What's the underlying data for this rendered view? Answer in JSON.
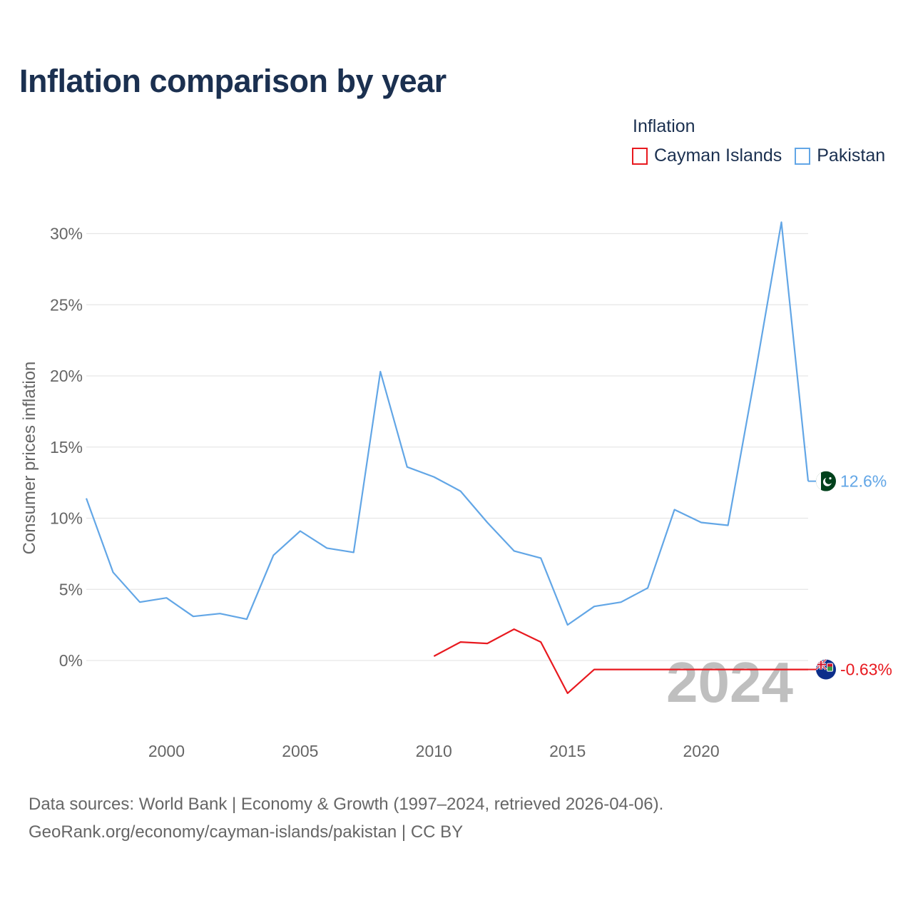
{
  "header": {
    "title": "Inflation comparison by year"
  },
  "legend": {
    "title": "Inflation",
    "items": [
      {
        "label": "Cayman Islands",
        "color": "#e8191f"
      },
      {
        "label": "Pakistan",
        "color": "#62a6e6"
      }
    ]
  },
  "chart_data": {
    "type": "line",
    "title": "Inflation comparison by year",
    "xlabel": "",
    "ylabel": "Consumer prices inflation",
    "xlim": [
      1997,
      2024
    ],
    "ylim": [
      -4.5,
      32
    ],
    "x_ticks": [
      2000,
      2005,
      2010,
      2015,
      2020
    ],
    "y_ticks": [
      {
        "value": 0,
        "label": "0%"
      },
      {
        "value": 5,
        "label": "5%"
      },
      {
        "value": 10,
        "label": "10%"
      },
      {
        "value": 15,
        "label": "15%"
      },
      {
        "value": 20,
        "label": "20%"
      },
      {
        "value": 25,
        "label": "25%"
      },
      {
        "value": 30,
        "label": "30%"
      }
    ],
    "grid": true,
    "watermark_year": "2024",
    "series": [
      {
        "name": "Pakistan",
        "color": "#62a6e6",
        "flag": "pakistan-flag-icon",
        "end_label": "12.6%",
        "points": [
          [
            1997,
            11.4
          ],
          [
            1998,
            6.2
          ],
          [
            1999,
            4.1
          ],
          [
            2000,
            4.4
          ],
          [
            2001,
            3.1
          ],
          [
            2002,
            3.3
          ],
          [
            2003,
            2.9
          ],
          [
            2004,
            7.4
          ],
          [
            2005,
            9.1
          ],
          [
            2006,
            7.9
          ],
          [
            2007,
            7.6
          ],
          [
            2008,
            20.3
          ],
          [
            2009,
            13.6
          ],
          [
            2010,
            12.9
          ],
          [
            2011,
            11.9
          ],
          [
            2012,
            9.7
          ],
          [
            2013,
            7.7
          ],
          [
            2014,
            7.2
          ],
          [
            2015,
            2.5
          ],
          [
            2016,
            3.8
          ],
          [
            2017,
            4.1
          ],
          [
            2018,
            5.1
          ],
          [
            2019,
            10.6
          ],
          [
            2020,
            9.7
          ],
          [
            2021,
            9.5
          ],
          [
            2022,
            19.9
          ],
          [
            2023,
            30.8
          ],
          [
            2024,
            12.6
          ]
        ]
      },
      {
        "name": "Cayman Islands",
        "color": "#e8191f",
        "flag": "cayman-islands-flag-icon",
        "end_label": "-0.63%",
        "points": [
          [
            2010,
            0.3
          ],
          [
            2011,
            1.3
          ],
          [
            2012,
            1.2
          ],
          [
            2013,
            2.2
          ],
          [
            2014,
            1.3
          ],
          [
            2015,
            -2.3
          ],
          [
            2016,
            -0.63
          ],
          [
            2017,
            -0.63
          ],
          [
            2018,
            -0.63
          ],
          [
            2019,
            -0.63
          ],
          [
            2020,
            -0.63
          ],
          [
            2021,
            -0.63
          ],
          [
            2022,
            -0.63
          ],
          [
            2023,
            -0.63
          ],
          [
            2024,
            -0.63
          ]
        ]
      }
    ]
  },
  "footer": {
    "source_line1": "Data sources: World Bank | Economy & Growth (1997–2024, retrieved 2026-04-06).",
    "source_line2": "GeoRank.org/economy/cayman-islands/pakistan | CC BY"
  }
}
